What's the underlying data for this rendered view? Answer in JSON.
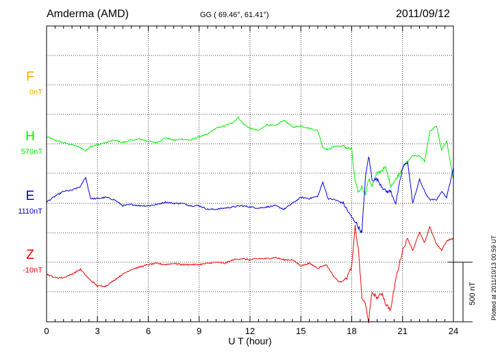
{
  "header": {
    "station": "Amderma (AMD)",
    "coords": "GG ( 69.46°,  61.41°)",
    "date": "2011/09/12"
  },
  "plotted_note": "Plotted at 2011/10/13 00:59 UT",
  "scale_label": "500 nT",
  "colors": {
    "F": "#ffa500",
    "H": "#00ee00",
    "E": "#0000dd",
    "Z": "#ee0000"
  },
  "chart_data": {
    "type": "line",
    "xlabel": "U T (hour)",
    "xlim": [
      0,
      24
    ],
    "xticks": [
      0,
      3,
      6,
      9,
      12,
      15,
      18,
      21,
      24
    ],
    "xtick_labels": [
      "0",
      "3",
      "6",
      "9",
      "12",
      "15",
      "18",
      "21",
      "24"
    ],
    "components": [
      {
        "name": "F",
        "base_label": "0nT"
      },
      {
        "name": "H",
        "base_label": "570nT"
      },
      {
        "name": "E",
        "base_label": "1110nT"
      },
      {
        "name": "Z",
        "base_label": "-10nT"
      }
    ],
    "scale_bar_nT": 500,
    "series": [
      {
        "name": "H",
        "x": [
          0,
          0.5,
          1,
          1.5,
          2,
          2.3,
          2.6,
          3,
          3.5,
          4,
          4.5,
          5,
          5.5,
          6,
          6.5,
          7,
          7.5,
          8,
          8.5,
          9,
          9.5,
          10,
          10.5,
          11,
          11.3,
          11.6,
          12,
          12.5,
          13,
          13.5,
          14,
          14.5,
          15,
          15.5,
          16,
          16.3,
          16.6,
          17,
          17.5,
          18,
          18.2,
          18.4,
          18.6,
          18.8,
          19,
          19.2,
          19.5,
          20,
          20.3,
          20.6,
          21,
          21.3,
          21.6,
          22,
          22.3,
          22.6,
          23,
          23.3,
          23.6,
          24
        ],
        "values": [
          60,
          30,
          10,
          -10,
          -30,
          -60,
          -20,
          -10,
          10,
          30,
          10,
          30,
          40,
          20,
          10,
          50,
          30,
          40,
          30,
          60,
          80,
          130,
          150,
          180,
          220,
          170,
          130,
          110,
          160,
          150,
          200,
          140,
          150,
          130,
          110,
          -30,
          -50,
          -20,
          -20,
          -50,
          -320,
          -410,
          -360,
          -420,
          -300,
          -350,
          -250,
          -200,
          -350,
          -300,
          -200,
          -150,
          -100,
          -100,
          -150,
          100,
          150,
          -50,
          20,
          -300
        ]
      },
      {
        "name": "E",
        "x": [
          0,
          0.5,
          1,
          1.5,
          2,
          2.3,
          2.6,
          3,
          3.5,
          4,
          4.5,
          5,
          5.5,
          6,
          6.5,
          7,
          7.5,
          8,
          8.5,
          9,
          9.5,
          10,
          10.5,
          11,
          11.5,
          12,
          12.5,
          13,
          13.5,
          14,
          14.5,
          15,
          15.5,
          16,
          16.3,
          16.6,
          17,
          17.5,
          18,
          18.2,
          18.4,
          18.6,
          18.8,
          19,
          19.2,
          19.5,
          20,
          20.3,
          20.6,
          21,
          21.3,
          21.6,
          22,
          22.3,
          22.6,
          23,
          23.3,
          23.6,
          24
        ],
        "values": [
          10,
          60,
          100,
          110,
          140,
          220,
          40,
          40,
          50,
          30,
          -20,
          -10,
          -20,
          -20,
          -10,
          10,
          0,
          0,
          -20,
          -20,
          -50,
          -50,
          -40,
          -30,
          -20,
          -30,
          -40,
          -30,
          -20,
          -50,
          0,
          50,
          40,
          60,
          180,
          40,
          30,
          0,
          -120,
          -150,
          -200,
          -250,
          200,
          400,
          200,
          200,
          100,
          100,
          0,
          300,
          350,
          0,
          200,
          100,
          30,
          30,
          100,
          50,
          300
        ]
      },
      {
        "name": "Z",
        "x": [
          0,
          0.5,
          1,
          1.5,
          2,
          2.5,
          3,
          3.5,
          4,
          4.5,
          5,
          5.5,
          6,
          6.5,
          7,
          7.5,
          8,
          8.5,
          9,
          9.5,
          10,
          10.5,
          11,
          11.5,
          12,
          12.5,
          13,
          13.5,
          14,
          14.5,
          15,
          15.5,
          16,
          16.5,
          17,
          17.3,
          17.7,
          18,
          18.2,
          18.4,
          18.6,
          18.8,
          19,
          19.2,
          19.5,
          19.8,
          20,
          20.3,
          20.6,
          21,
          21.3,
          21.6,
          22,
          22.3,
          22.6,
          23,
          23.3,
          23.6,
          24
        ],
        "values": [
          -100,
          -130,
          -130,
          -100,
          -60,
          -140,
          -200,
          -200,
          -150,
          -100,
          -60,
          -40,
          -20,
          -10,
          -20,
          -10,
          -20,
          -20,
          -20,
          -10,
          0,
          -10,
          20,
          30,
          20,
          30,
          30,
          40,
          20,
          20,
          -30,
          -10,
          -50,
          -20,
          -130,
          -170,
          -130,
          -40,
          300,
          100,
          -300,
          -350,
          -500,
          -250,
          -300,
          -260,
          -350,
          -400,
          -140,
          100,
          200,
          100,
          250,
          160,
          300,
          150,
          100,
          180,
          200
        ]
      }
    ]
  }
}
